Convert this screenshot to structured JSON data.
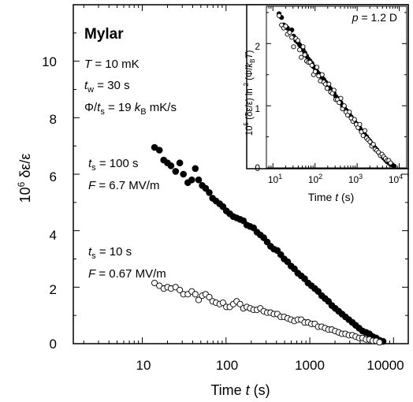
{
  "chart_data": [
    {
      "type": "scatter",
      "xscale": "log",
      "xlim": [
        1.5,
        15000
      ],
      "ylim": [
        0,
        12
      ],
      "xticks": [
        "10",
        "100",
        "1000",
        "10000"
      ],
      "yticks": [
        "0",
        "2",
        "4",
        "6",
        "8",
        "10"
      ],
      "xlabel": {
        "main": "Time ",
        "var": "t",
        "unit": " (s)"
      },
      "ylabel": {
        "pre": "10",
        "exp": "6",
        "post": " δε/ε"
      },
      "annotations": {
        "material": "Mylar",
        "T": {
          "sym": "T",
          "val": " = 10 mK"
        },
        "tw": {
          "sym": "t",
          "sub": "w",
          "val": " = 30 s"
        },
        "rate": {
          "phi": "Φ/",
          "sym": "t",
          "sub": "s",
          "mid": " = 19 ",
          "k": "k",
          "ksub": "B",
          "unit": " mK/s"
        },
        "ts100": {
          "sym": "t",
          "sub": "s",
          "val": " = 100 s"
        },
        "F67": {
          "sym": "F",
          "val": " = 6.7 MV/m"
        },
        "ts10": {
          "sym": "t",
          "sub": "s",
          "val": " = 10 s"
        },
        "F067": {
          "sym": "F",
          "val": " = 0.67 MV/m"
        }
      },
      "series": [
        {
          "marker": "filled-circle",
          "x": [
            14,
            16,
            18,
            20,
            22,
            25,
            28,
            31,
            35,
            39,
            43,
            47,
            52,
            57,
            63,
            69,
            76,
            84,
            92,
            101,
            111,
            122,
            134,
            147,
            161,
            177,
            194,
            213,
            234,
            257,
            282,
            310,
            340,
            373,
            410,
            450,
            494,
            543,
            596,
            655,
            719,
            790,
            867,
            952,
            1045,
            1148,
            1261,
            1385,
            1521,
            1670,
            1834,
            2014,
            2212,
            2429,
            2668,
            2930,
            3218,
            3534,
            3881,
            4262,
            4681,
            5141,
            5646,
            6200,
            6800,
            7500
          ],
          "y": [
            6.95,
            6.85,
            6.5,
            6.4,
            6.3,
            6.1,
            6.4,
            6.0,
            5.7,
            5.8,
            6.2,
            5.8,
            5.6,
            5.5,
            5.35,
            5.15,
            5.05,
            4.95,
            4.85,
            4.7,
            4.6,
            4.5,
            4.45,
            4.4,
            4.35,
            4.2,
            4.15,
            4.1,
            3.95,
            3.85,
            3.75,
            3.6,
            3.45,
            3.35,
            3.3,
            3.15,
            3.0,
            2.9,
            2.75,
            2.65,
            2.5,
            2.4,
            2.3,
            2.15,
            2.05,
            1.95,
            1.85,
            1.7,
            1.6,
            1.5,
            1.35,
            1.25,
            1.15,
            1.05,
            0.95,
            0.85,
            0.75,
            0.65,
            0.55,
            0.45,
            0.4,
            0.35,
            0.25,
            0.2,
            0.12,
            0.08
          ]
        },
        {
          "marker": "open-circle",
          "x": [
            14,
            16,
            18,
            20,
            22,
            25,
            28,
            31,
            35,
            39,
            43,
            47,
            52,
            57,
            63,
            69,
            76,
            84,
            92,
            101,
            111,
            122,
            134,
            147,
            161,
            177,
            194,
            213,
            234,
            257,
            282,
            310,
            340,
            373,
            410,
            450,
            494,
            543,
            596,
            655,
            719,
            790,
            867,
            952,
            1045,
            1148,
            1261,
            1385,
            1521,
            1670,
            1834,
            2014,
            2212,
            2429,
            2668,
            2930,
            3218,
            3534,
            3881,
            4262,
            4681,
            5141,
            5646,
            6200,
            6800
          ],
          "y": [
            2.15,
            2.05,
            1.95,
            2.0,
            1.95,
            2.0,
            1.9,
            1.75,
            1.75,
            1.85,
            1.75,
            1.55,
            1.7,
            1.75,
            1.65,
            1.5,
            1.45,
            1.4,
            1.45,
            1.3,
            1.3,
            1.4,
            1.5,
            1.4,
            1.25,
            1.3,
            1.25,
            1.2,
            1.2,
            1.25,
            1.15,
            1.1,
            1.1,
            1.05,
            1.05,
            0.95,
            0.95,
            0.9,
            0.85,
            0.8,
            0.85,
            0.85,
            0.75,
            0.75,
            0.7,
            0.7,
            0.6,
            0.6,
            0.55,
            0.5,
            0.5,
            0.45,
            0.4,
            0.35,
            0.35,
            0.3,
            0.3,
            0.25,
            0.2,
            0.2,
            0.15,
            0.15,
            0.1,
            0.1,
            0.05
          ]
        }
      ]
    },
    {
      "type": "scatter",
      "xscale": "log",
      "xlim": [
        7,
        15000
      ],
      "ylim": [
        0,
        2.6
      ],
      "xticks": [
        {
          "base": "10",
          "exp": "1"
        },
        {
          "base": "10",
          "exp": "2"
        },
        {
          "base": "10",
          "exp": "3"
        },
        {
          "base": "10",
          "exp": "4"
        }
      ],
      "yticks": [
        "0",
        "1",
        "2"
      ],
      "xlabel": {
        "main": "Time ",
        "var": "t",
        "unit": " (s)"
      },
      "ylabel": {
        "pre": "10",
        "exp": "5",
        "a": " (δε/ε) ln",
        "exp2": "-2",
        "b": " (Φ/",
        "k": "k",
        "ksub": "B",
        "T": "T",
        "c": ")"
      },
      "annotation": {
        "sym": "p",
        "val": " = 1.2 D"
      },
      "series": [
        {
          "marker": "filled-circle",
          "x": [
            14,
            16,
            18,
            20,
            22,
            25,
            28,
            31,
            35,
            39,
            43,
            47,
            52,
            57,
            63,
            69,
            76,
            84,
            92,
            101,
            111,
            122,
            134,
            147,
            161,
            177,
            194,
            213,
            234,
            257,
            282,
            310,
            340,
            373,
            410,
            450,
            494,
            543,
            596,
            655,
            719,
            790,
            867,
            952,
            1045,
            1148,
            1261,
            1385,
            1521,
            1670,
            1834,
            2014,
            2212,
            2429,
            2668,
            2930,
            3218,
            3534,
            3881,
            4262,
            4681,
            5141,
            5646,
            6200,
            6800,
            7500
          ],
          "y": [
            2.48,
            2.42,
            2.3,
            2.28,
            2.25,
            2.2,
            2.22,
            2.12,
            2.05,
            2.02,
            1.98,
            1.95,
            1.9,
            1.85,
            1.8,
            1.75,
            1.72,
            1.68,
            1.63,
            1.6,
            1.55,
            1.52,
            1.48,
            1.45,
            1.42,
            1.38,
            1.35,
            1.3,
            1.27,
            1.23,
            1.2,
            1.15,
            1.12,
            1.08,
            1.05,
            1.0,
            0.97,
            0.93,
            0.9,
            0.86,
            0.82,
            0.78,
            0.75,
            0.71,
            0.68,
            0.64,
            0.6,
            0.57,
            0.53,
            0.5,
            0.46,
            0.43,
            0.39,
            0.36,
            0.32,
            0.29,
            0.25,
            0.22,
            0.19,
            0.16,
            0.13,
            0.1,
            0.08,
            0.06,
            0.05,
            0.03
          ]
        },
        {
          "marker": "open-circle",
          "x": [
            14,
            16,
            18,
            20,
            22,
            25,
            28,
            31,
            35,
            39,
            43,
            47,
            52,
            57,
            63,
            69,
            76,
            84,
            92,
            101,
            111,
            122,
            134,
            147,
            161,
            177,
            194,
            213,
            234,
            257,
            282,
            310,
            340,
            373,
            410,
            450,
            494,
            543,
            596,
            655,
            719,
            790,
            867,
            952,
            1045,
            1148,
            1261,
            1385,
            1521,
            1670,
            1834,
            2014,
            2212,
            2429,
            2668,
            2930,
            3218,
            3534,
            3881,
            4262,
            4681,
            5141,
            5646,
            6200
          ],
          "y": [
            2.45,
            2.3,
            2.25,
            2.28,
            2.15,
            2.18,
            2.1,
            1.95,
            2.08,
            2.05,
            1.9,
            1.78,
            1.95,
            1.82,
            1.72,
            1.7,
            1.7,
            1.65,
            1.5,
            1.55,
            1.62,
            1.48,
            1.4,
            1.5,
            1.38,
            1.35,
            1.28,
            1.35,
            1.22,
            1.2,
            1.25,
            1.1,
            1.1,
            1.05,
            1.12,
            0.95,
            1.0,
            0.9,
            0.85,
            0.9,
            0.8,
            0.75,
            0.78,
            0.7,
            0.65,
            0.7,
            0.58,
            0.52,
            0.6,
            0.48,
            0.45,
            0.42,
            0.35,
            0.38,
            0.3,
            0.28,
            0.25,
            0.2,
            0.22,
            0.18,
            0.15,
            0.12,
            0.12,
            0.08
          ]
        }
      ]
    }
  ]
}
